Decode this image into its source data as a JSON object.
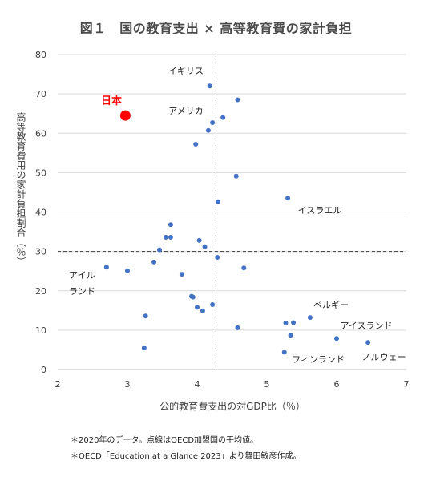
{
  "figure": {
    "title": "図１　国の教育支出 × 高等教育費の家計負担"
  },
  "notes": [
    "＊2020年のデータ。点線はOECD加盟国の平均値。",
    "＊OECD「Education at a Glance 2023」より舞田敏彦作成。"
  ],
  "colors": {
    "point": "#4472c4",
    "highlight": "#ff0000",
    "text": "#404040",
    "grid": "#d9d9d9"
  },
  "chart_data": {
    "type": "scatter",
    "xlabel": "公的教育費支出の対GDP比（％）",
    "ylabel": "高等教育費用の家計負担割合（％）",
    "xlim": [
      2,
      7
    ],
    "ylim": [
      0,
      80
    ],
    "x_ticks": [
      2,
      3,
      4,
      5,
      6,
      7
    ],
    "y_ticks": [
      0,
      10,
      20,
      30,
      40,
      50,
      60,
      70,
      80
    ],
    "grid": "horizontal",
    "reference_lines": {
      "x": 4.27,
      "y": 30
    },
    "highlight": {
      "label": "日本",
      "x": 2.97,
      "y": 64.5
    },
    "points": [
      {
        "label": "イギリス",
        "x": 4.18,
        "y": 72
      },
      {
        "label": "",
        "x": 4.58,
        "y": 68.5
      },
      {
        "label": "アメリカ",
        "x": 4.37,
        "y": 64
      },
      {
        "label": "",
        "x": 4.22,
        "y": 62.7
      },
      {
        "label": "",
        "x": 4.16,
        "y": 60.7
      },
      {
        "label": "",
        "x": 3.98,
        "y": 57.2
      },
      {
        "label": "",
        "x": 4.56,
        "y": 49.1
      },
      {
        "label": "イスラエル",
        "x": 5.3,
        "y": 43.5
      },
      {
        "label": "",
        "x": 4.3,
        "y": 42.6
      },
      {
        "label": "",
        "x": 3.62,
        "y": 36.8
      },
      {
        "label": "",
        "x": 3.55,
        "y": 33.6
      },
      {
        "label": "",
        "x": 3.62,
        "y": 33.6
      },
      {
        "label": "",
        "x": 4.03,
        "y": 32.8
      },
      {
        "label": "",
        "x": 3.46,
        "y": 30.4
      },
      {
        "label": "",
        "x": 4.11,
        "y": 31.2
      },
      {
        "label": "",
        "x": 4.29,
        "y": 28.5
      },
      {
        "label": "",
        "x": 3.38,
        "y": 27.3
      },
      {
        "label": "",
        "x": 4.67,
        "y": 25.8
      },
      {
        "label": "アイルランド",
        "x": 2.7,
        "y": 26.0
      },
      {
        "label": "",
        "x": 3.0,
        "y": 25.1
      },
      {
        "label": "",
        "x": 3.78,
        "y": 24.2
      },
      {
        "label": "",
        "x": 3.92,
        "y": 18.6
      },
      {
        "label": "",
        "x": 3.94,
        "y": 18.4
      },
      {
        "label": "",
        "x": 4.22,
        "y": 16.5
      },
      {
        "label": "",
        "x": 4.0,
        "y": 15.8
      },
      {
        "label": "",
        "x": 4.08,
        "y": 14.9
      },
      {
        "label": "",
        "x": 3.26,
        "y": 13.6
      },
      {
        "label": "ベルギー",
        "x": 5.62,
        "y": 13.2
      },
      {
        "label": "",
        "x": 5.27,
        "y": 11.8
      },
      {
        "label": "",
        "x": 5.38,
        "y": 11.9
      },
      {
        "label": "",
        "x": 4.58,
        "y": 10.6
      },
      {
        "label": "",
        "x": 5.34,
        "y": 8.7
      },
      {
        "label": "アイスランド",
        "x": 6.0,
        "y": 7.9
      },
      {
        "label": "ノルウェー",
        "x": 6.45,
        "y": 6.9
      },
      {
        "label": "",
        "x": 3.24,
        "y": 5.5
      },
      {
        "label": "フィンランド",
        "x": 5.25,
        "y": 4.4
      }
    ],
    "annotations": [
      {
        "text": "イギリス"
      },
      {
        "text": "アメリカ"
      },
      {
        "text": "イスラエル"
      },
      {
        "text": "アイル"
      },
      {
        "text": "ランド"
      },
      {
        "text": "ベルギー"
      },
      {
        "text": "アイスランド"
      },
      {
        "text": "フィンランド"
      },
      {
        "text": "ノルウェー"
      },
      {
        "text": "日本"
      }
    ]
  }
}
